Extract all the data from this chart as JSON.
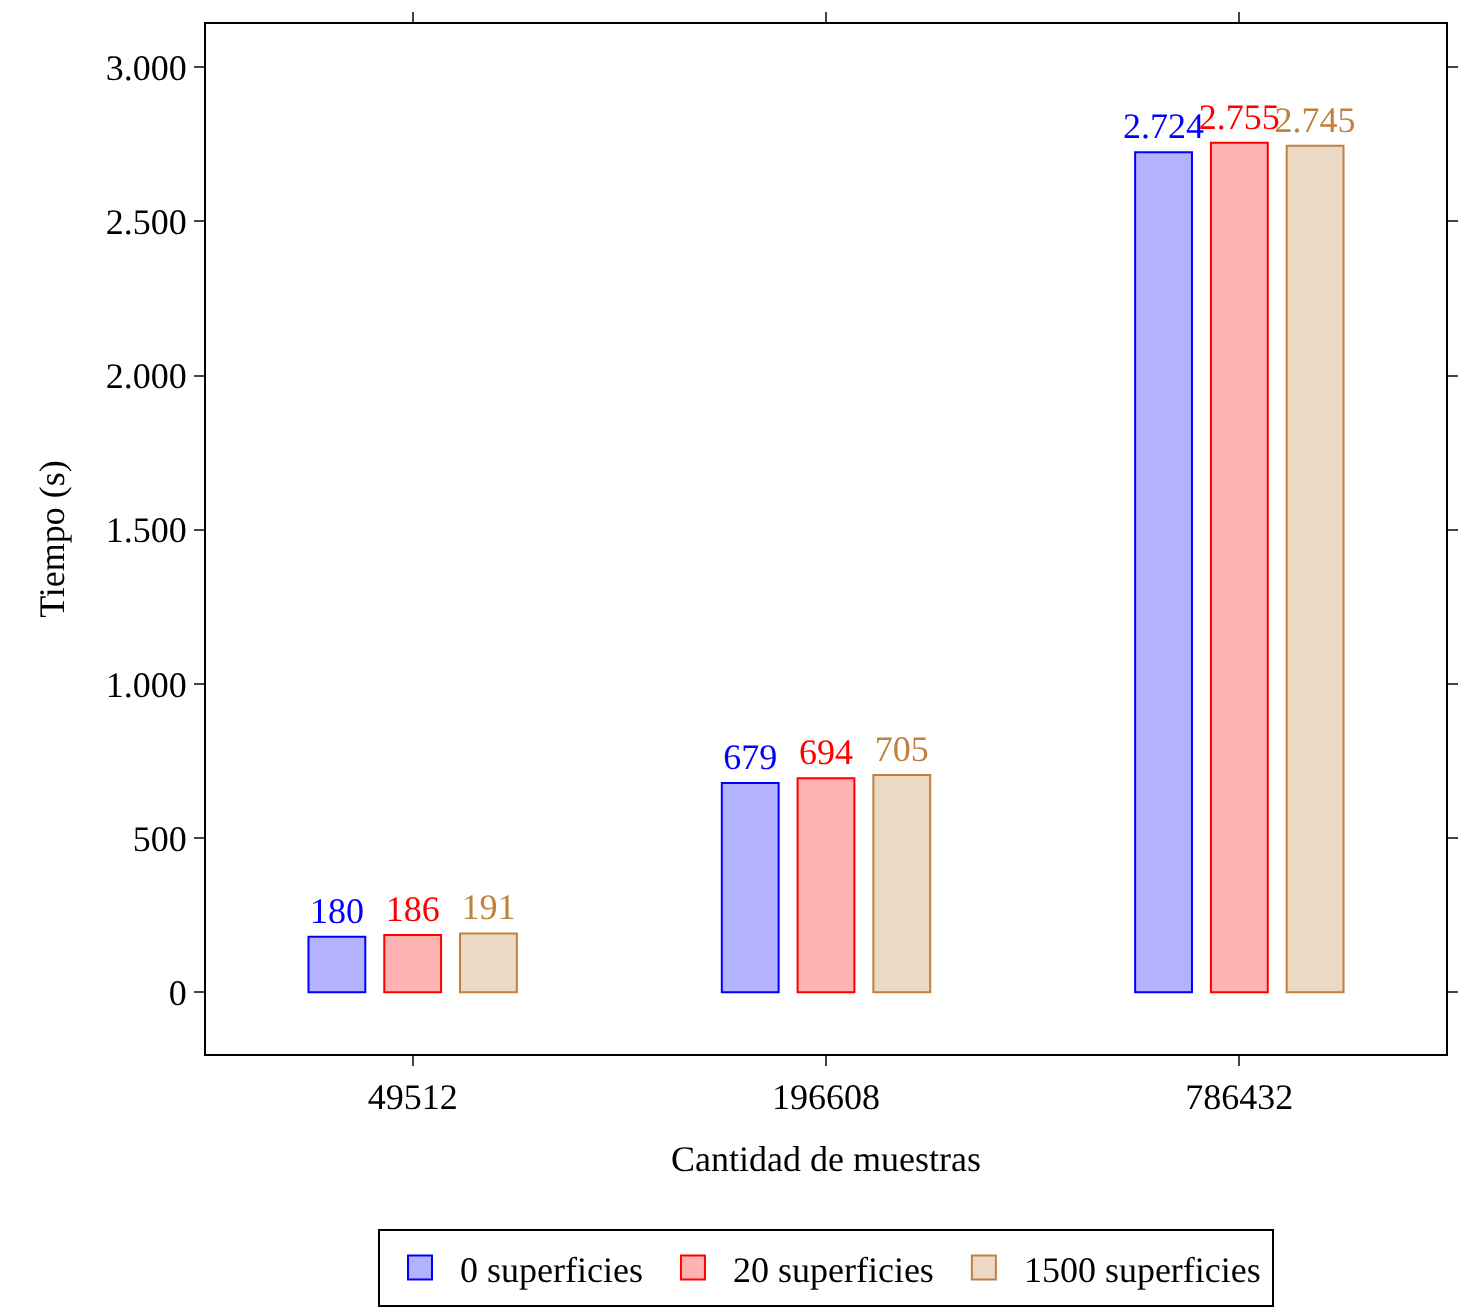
{
  "chart_data": {
    "type": "bar",
    "xlabel": "Cantidad de muestras",
    "ylabel": "Tiempo (s)",
    "categories": [
      "49512",
      "196608",
      "786432"
    ],
    "series": [
      {
        "name": "0 superficies",
        "color": "#0000ff",
        "values": [
          180,
          679,
          2724
        ],
        "value_labels": [
          "180",
          "679",
          "2.724"
        ]
      },
      {
        "name": "20 superficies",
        "color": "#ff0000",
        "values": [
          186,
          694,
          2755
        ],
        "value_labels": [
          "186",
          "694",
          "2.755"
        ]
      },
      {
        "name": "1500 superficies",
        "color": "#bf8040",
        "values": [
          191,
          705,
          2745
        ],
        "value_labels": [
          "191",
          "705",
          "2.745"
        ]
      }
    ],
    "ylim": [
      -200,
      3140
    ],
    "yticks": [
      0,
      500,
      {
        "value": 1000,
        "label": "1.000"
      },
      {
        "value": 1500,
        "label": "1.500"
      },
      {
        "value": 2000,
        "label": "2.000"
      },
      {
        "value": 2500,
        "label": "2.500"
      },
      {
        "value": 3000,
        "label": "3.000"
      }
    ],
    "legend": "bottom"
  }
}
